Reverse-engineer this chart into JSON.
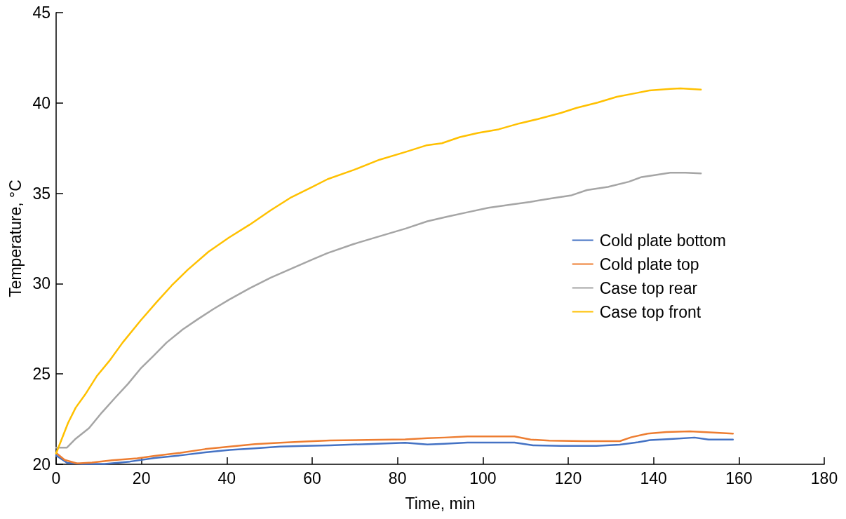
{
  "chart_data": {
    "type": "line",
    "xlabel": "Time, min",
    "ylabel": "Temperature, °C",
    "xlim": [
      0,
      180
    ],
    "xticks": [
      0,
      20,
      40,
      60,
      80,
      100,
      120,
      140,
      160,
      180
    ],
    "ylim": [
      20,
      45
    ],
    "yticks": [
      20,
      25,
      30,
      35,
      40,
      45
    ],
    "grid": false,
    "legend": "right",
    "marker": "none",
    "line_style": "solid",
    "series": [
      {
        "name": "Cold plate bottom",
        "color": "#4472c4",
        "x": [
          0,
          2.6,
          6.1,
          11.4,
          17.3,
          23.1,
          29,
          34.9,
          40.7,
          46.6,
          52.5,
          58.4,
          64.2,
          73,
          81.8,
          87,
          91,
          96.4,
          101.9,
          107.4,
          111.8,
          118.3,
          126.6,
          132.1,
          136.4,
          139.2,
          144.6,
          149.6,
          152.9,
          158.6
        ],
        "values": [
          20.49,
          20.08,
          20.02,
          20.02,
          20.15,
          20.35,
          20.49,
          20.66,
          20.8,
          20.88,
          20.98,
          21.02,
          21.05,
          21.12,
          21.19,
          21.1,
          21.14,
          21.2,
          21.2,
          21.2,
          21.05,
          21.02,
          21.02,
          21.09,
          21.22,
          21.34,
          21.41,
          21.48,
          21.37,
          21.37
        ]
      },
      {
        "name": "Cold plate top",
        "color": "#ed7d31",
        "x": [
          0,
          2,
          4.9,
          8.4,
          13.1,
          19,
          23.1,
          29,
          34.9,
          40.7,
          46.6,
          52.5,
          58.4,
          64.2,
          73,
          81.8,
          87,
          91,
          96.4,
          101.9,
          107.4,
          111.2,
          115.6,
          123.8,
          132.1,
          134.8,
          138.6,
          143,
          148.5,
          154,
          158.6
        ],
        "values": [
          20.63,
          20.24,
          20.05,
          20.1,
          20.22,
          20.33,
          20.47,
          20.63,
          20.84,
          20.98,
          21.12,
          21.19,
          21.26,
          21.32,
          21.35,
          21.38,
          21.45,
          21.48,
          21.54,
          21.54,
          21.54,
          21.37,
          21.31,
          21.28,
          21.28,
          21.5,
          21.7,
          21.79,
          21.82,
          21.76,
          21.7
        ]
      },
      {
        "name": "Case top rear",
        "color": "#a5a5a5",
        "x": [
          0,
          2.5,
          4.6,
          7.7,
          10.7,
          13.7,
          16.8,
          19.8,
          22.9,
          25.9,
          29.6,
          33.2,
          36.9,
          40.5,
          45.4,
          50.3,
          55.1,
          60,
          63.6,
          69.7,
          75.8,
          81.9,
          87,
          91.6,
          96.4,
          101.3,
          106.8,
          111,
          115.9,
          120.8,
          124.4,
          129.3,
          134.2,
          137.2,
          140.2,
          143.9,
          147.5,
          151.1
        ],
        "values": [
          20.92,
          20.92,
          21.42,
          22.0,
          22.86,
          23.65,
          24.44,
          25.3,
          26.02,
          26.74,
          27.45,
          28.03,
          28.6,
          29.11,
          29.75,
          30.33,
          30.83,
          31.33,
          31.69,
          32.19,
          32.62,
          33.05,
          33.45,
          33.7,
          33.95,
          34.2,
          34.38,
          34.52,
          34.71,
          34.89,
          35.18,
          35.35,
          35.64,
          35.9,
          36.0,
          36.14,
          36.14,
          36.1
        ]
      },
      {
        "name": "Case top front",
        "color": "#ffc000",
        "x": [
          0,
          2.8,
          4.6,
          6.8,
          9.5,
          12.5,
          15.6,
          19.8,
          23.5,
          27.1,
          30.8,
          35.7,
          40.5,
          45.4,
          50.3,
          55.1,
          60,
          63.6,
          69.7,
          75.8,
          81.9,
          86.7,
          90.4,
          94.6,
          98.9,
          103.7,
          108.6,
          112.9,
          118.3,
          122,
          126.9,
          131.4,
          136,
          139,
          143.9,
          146.3,
          151.1
        ],
        "values": [
          20.6,
          22.29,
          23.14,
          23.86,
          24.87,
          25.73,
          26.74,
          27.96,
          28.96,
          29.9,
          30.76,
          31.76,
          32.55,
          33.27,
          34.06,
          34.78,
          35.35,
          35.78,
          36.29,
          36.86,
          37.29,
          37.65,
          37.77,
          38.11,
          38.34,
          38.54,
          38.87,
          39.11,
          39.45,
          39.73,
          40.02,
          40.34,
          40.55,
          40.69,
          40.78,
          40.81,
          40.74
        ]
      }
    ]
  }
}
